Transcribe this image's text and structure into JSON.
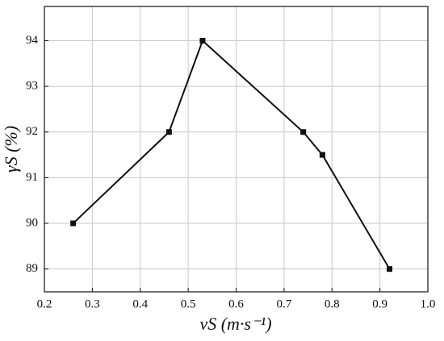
{
  "chart_data": {
    "type": "line",
    "xlabel": "vS (m·s⁻¹)",
    "ylabel": "γS (%)",
    "x": [
      0.26,
      0.46,
      0.53,
      0.74,
      0.78,
      0.92
    ],
    "series": [
      {
        "color": "#111111",
        "values": [
          90,
          92,
          94,
          92,
          91.5,
          89
        ]
      }
    ],
    "xlim": [
      0.2,
      1.0
    ],
    "xticks": [
      0.2,
      0.3,
      0.4,
      0.5,
      0.6,
      0.7,
      0.8,
      0.9,
      {
        "value": 1.0,
        "label": "1.0"
      }
    ],
    "ylim": [
      88.5,
      94.75
    ],
    "yticks": [
      89,
      90,
      91,
      92,
      93,
      94
    ],
    "grid": true
  }
}
